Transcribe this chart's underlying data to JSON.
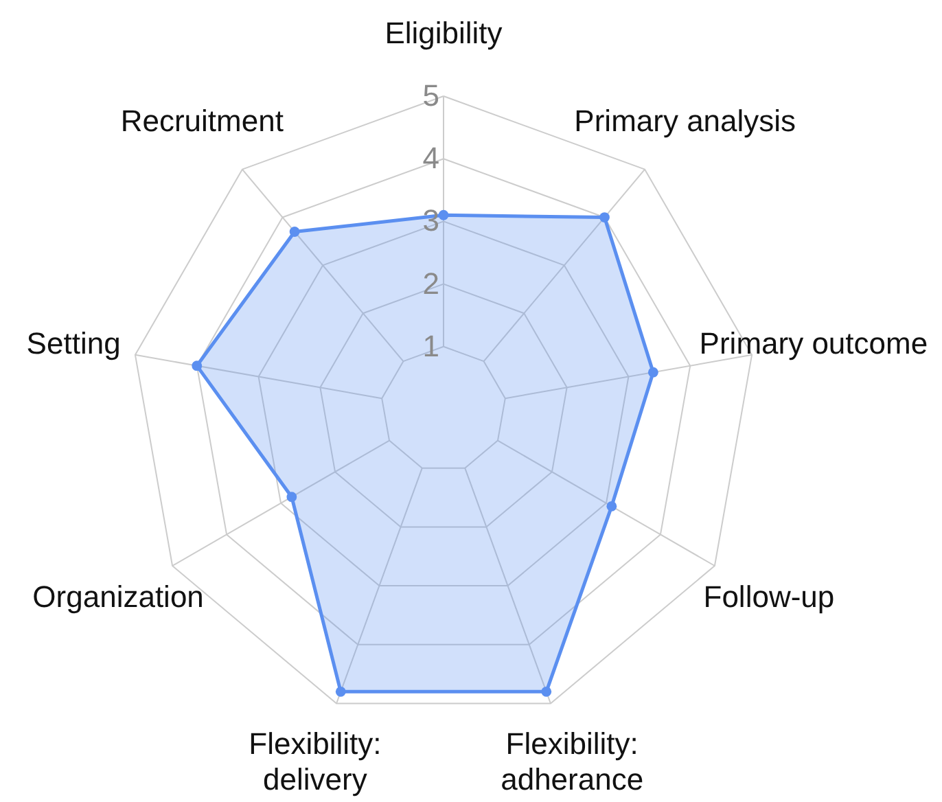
{
  "chart_data": {
    "type": "radar",
    "categories": [
      "Eligibility",
      "Primary analysis",
      "Primary outcome",
      "Follow-up",
      "Flexibility: adherance",
      "Flexibility: delivery",
      "Organization",
      "Setting",
      "Recruitment"
    ],
    "series": [
      {
        "color": "#5b8ff0",
        "values": [
          3.1,
          4,
          3.4,
          3.1,
          4.8,
          4.8,
          2.8,
          4,
          3.7
        ]
      }
    ],
    "ylim": [
      0,
      5
    ],
    "yticks": [
      1,
      2,
      3,
      4,
      5
    ],
    "grid": true,
    "marker": "circle"
  }
}
